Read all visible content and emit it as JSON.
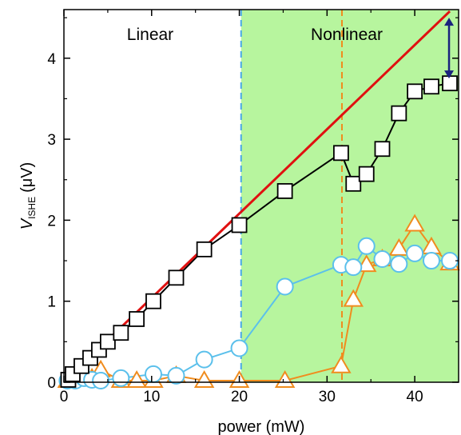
{
  "chart_data": {
    "type": "scatter",
    "xlabel": "power (mW)",
    "ylabel": {
      "main": "V",
      "sub": "ISHE",
      "unit": "(μV)"
    },
    "xlim": [
      0,
      45
    ],
    "ylim": [
      0,
      4.6
    ],
    "xticks": [
      "0",
      "10",
      "20",
      "30",
      "40"
    ],
    "yticks": [
      "0",
      "1",
      "2",
      "3",
      "4"
    ],
    "grid": false,
    "legend": "none",
    "regions": [
      {
        "label": "Linear",
        "x0": 0,
        "x1": 20.2,
        "color": "#ffffff"
      },
      {
        "label": "Nonlinear",
        "x0": 20.2,
        "x1": 45,
        "color": "#b7f59e"
      }
    ],
    "vlines": [
      {
        "x": 20.2,
        "color": "#4aa8e8",
        "style": "dashed"
      },
      {
        "x": 31.7,
        "color": "#f08c1e",
        "style": "dashed"
      }
    ],
    "fit_line": {
      "x": [
        0,
        44
      ],
      "y": [
        0,
        4.58
      ],
      "color": "#e01010"
    },
    "arrow": {
      "x": 44,
      "y_from": 4.5,
      "y_to": 3.69,
      "color": "#1a237e"
    },
    "series": [
      {
        "marker": "square",
        "color": "#000000",
        "fill": "#ffffff",
        "x": [
          0.5,
          1.0,
          2.0,
          3.0,
          4.0,
          5.0,
          6.5,
          8.3,
          10.2,
          12.8,
          16.0,
          20.0,
          25.2,
          31.6,
          33.0,
          34.5,
          36.3,
          38.2,
          40.0,
          41.9,
          44.0
        ],
        "y": [
          0.03,
          0.1,
          0.2,
          0.3,
          0.4,
          0.5,
          0.61,
          0.78,
          1.0,
          1.29,
          1.64,
          1.94,
          2.36,
          2.83,
          2.45,
          2.57,
          2.88,
          3.32,
          3.59,
          3.65,
          3.69
        ]
      },
      {
        "marker": "circle",
        "color": "#5bc0eb",
        "fill": "#ffffff",
        "x": [
          0.4,
          1.3,
          2.3,
          3.2,
          4.2,
          6.5,
          10.2,
          12.8,
          16.0,
          20.0,
          25.2,
          31.6,
          33.0,
          34.5,
          36.3,
          38.2,
          40.0,
          41.9,
          44.0
        ],
        "y": [
          0.02,
          0.02,
          0.05,
          0.03,
          0.02,
          0.05,
          0.1,
          0.08,
          0.28,
          0.42,
          1.18,
          1.45,
          1.42,
          1.68,
          1.52,
          1.46,
          1.59,
          1.5,
          1.5
        ],
        "show_markers": true
      },
      {
        "marker": "triangle",
        "color": "#f08c1e",
        "fill": "#ffffff",
        "x": [
          0.4,
          1.3,
          2.3,
          3.2,
          4.2,
          6.5,
          8.3,
          10.2,
          12.8,
          16.0,
          20.0,
          25.2,
          31.6,
          33.0,
          34.5,
          36.3,
          38.2,
          40.0,
          41.9,
          44.0
        ],
        "y": [
          0.02,
          0.05,
          0.1,
          0.05,
          0.15,
          0.02,
          0.02,
          0.02,
          0.08,
          0.02,
          0.02,
          0.02,
          0.2,
          1.02,
          1.45,
          1.52,
          1.65,
          1.95,
          1.67,
          1.47
        ]
      }
    ]
  }
}
